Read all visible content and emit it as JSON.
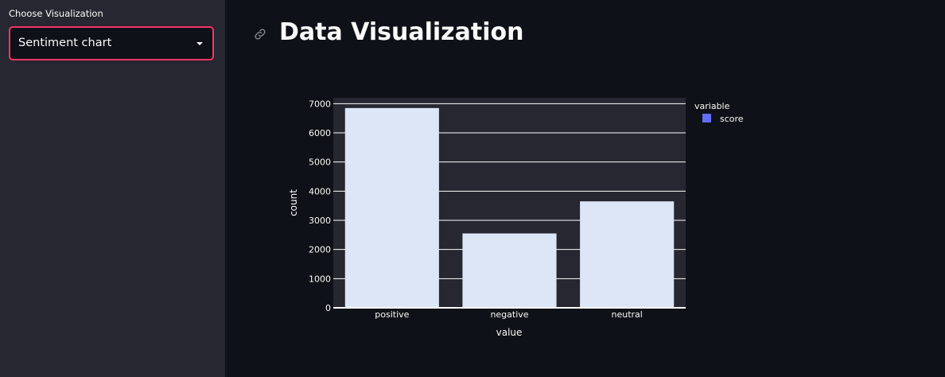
{
  "sidebar": {
    "label": "Choose Visualization",
    "select_value": "Sentiment chart"
  },
  "main": {
    "title": "Data Visualization"
  },
  "icons": {
    "link": "link-icon",
    "caret": "chevron-down-icon"
  },
  "colors": {
    "accent": "#f63366",
    "bar": "#dde6f7",
    "legend_swatch": "#636efa",
    "plot_bg": "#262730",
    "page_bg": "#0e1117"
  },
  "chart_data": {
    "type": "bar",
    "categories": [
      "positive",
      "negative",
      "neutral"
    ],
    "series": [
      {
        "name": "score",
        "values": [
          6850,
          2550,
          3650
        ]
      }
    ],
    "xlabel": "value",
    "ylabel": "count",
    "ylim": [
      0,
      7200
    ],
    "yticks": [
      0,
      1000,
      2000,
      3000,
      4000,
      5000,
      6000,
      7000
    ],
    "legend_title": "variable",
    "legend_position": "top-right",
    "grid": true
  }
}
